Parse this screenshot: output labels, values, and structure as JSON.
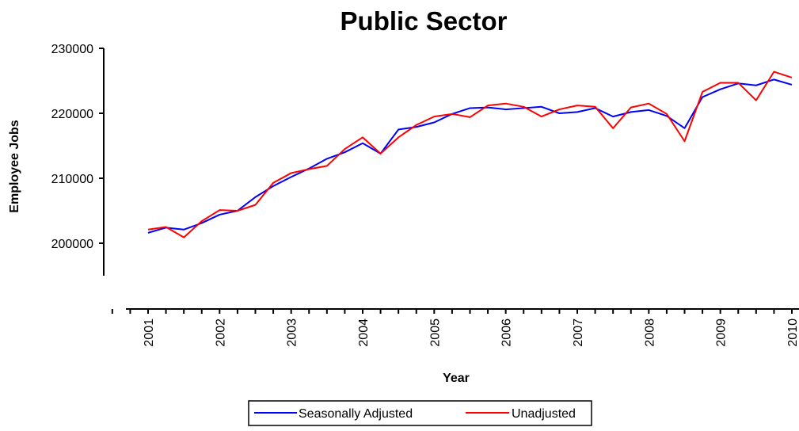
{
  "chart_data": {
    "type": "line",
    "title": "Public Sector",
    "xlabel": "Year",
    "ylabel": "Employee Jobs",
    "ylim": [
      195000,
      230000
    ],
    "y_ticks": [
      "200000",
      "210000",
      "220000",
      "230000"
    ],
    "x_ticks": [
      "2001",
      "2002",
      "2003",
      "2004",
      "2005",
      "2006",
      "2007",
      "2008",
      "2009",
      "2010"
    ],
    "x_tick_values": [
      2001,
      2002,
      2003,
      2004,
      2005,
      2006,
      2007,
      2008,
      2009,
      2010
    ],
    "xlim": [
      2000.75,
      2010.25
    ],
    "grid": false,
    "legend_position": "bottom",
    "x": [
      2001.0,
      2001.25,
      2001.5,
      2001.75,
      2002.0,
      2002.25,
      2002.5,
      2002.75,
      2003.0,
      2003.25,
      2003.5,
      2003.75,
      2004.0,
      2004.25,
      2004.5,
      2004.75,
      2005.0,
      2005.25,
      2005.5,
      2005.75,
      2006.0,
      2006.25,
      2006.5,
      2006.75,
      2007.0,
      2007.25,
      2007.5,
      2007.75,
      2008.0,
      2008.25,
      2008.5,
      2008.75,
      2009.0,
      2009.25,
      2009.5,
      2009.75,
      2010.0
    ],
    "series": [
      {
        "name": "Seasonally Adjusted",
        "color": "#0000ff",
        "values": [
          201600,
          202400,
          202100,
          203100,
          204400,
          205000,
          207100,
          208800,
          210200,
          211500,
          213000,
          214000,
          215400,
          213800,
          217500,
          217900,
          218600,
          219900,
          220800,
          220900,
          220600,
          220800,
          221000,
          220000,
          220200,
          220800,
          219500,
          220200,
          220500,
          219600,
          217700,
          222500,
          223700,
          224600,
          224300,
          225200,
          224400
        ]
      },
      {
        "name": "Unadjusted",
        "color": "#ff0000",
        "values": [
          202100,
          202500,
          200900,
          203400,
          205100,
          205000,
          205900,
          209300,
          210800,
          211400,
          211900,
          214500,
          216300,
          213800,
          216300,
          218200,
          219500,
          219900,
          219400,
          221200,
          221500,
          221000,
          219500,
          220600,
          221200,
          221000,
          217700,
          220900,
          221500,
          219900,
          215700,
          223300,
          224700,
          224700,
          222000,
          226400,
          225500
        ]
      }
    ]
  }
}
